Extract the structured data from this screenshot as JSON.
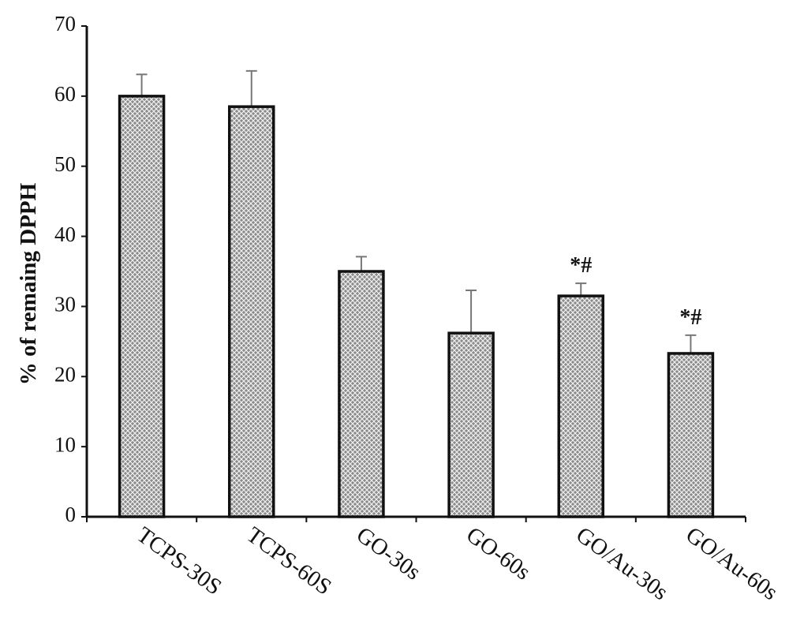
{
  "chart_data": {
    "type": "bar",
    "y_label": "% of remaing DPPH",
    "categories": [
      "TCPS-30S",
      "TCPS-60S",
      "GO-30s",
      "GO-60s",
      "GO/Au-30s",
      "GO/Au-60s"
    ],
    "values": [
      60,
      58.5,
      35,
      26.2,
      31.5,
      23.3
    ],
    "errors": [
      3.1,
      5.1,
      2.1,
      6.1,
      1.8,
      2.6
    ],
    "value_annotations": [
      null,
      null,
      null,
      null,
      "*#",
      "*#"
    ],
    "color": "#8a8a8a",
    "ylim": [
      0,
      70
    ],
    "yticks": [
      0,
      10,
      20,
      30,
      40,
      50,
      60,
      70
    ],
    "grid": false
  }
}
